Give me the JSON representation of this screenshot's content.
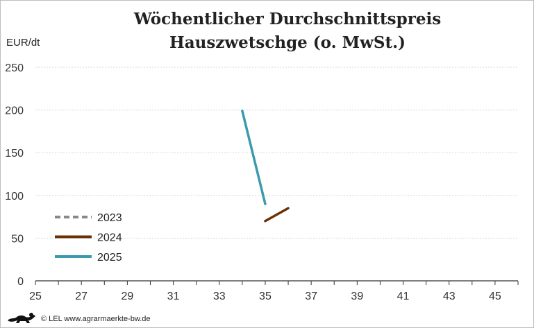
{
  "title_line1": "Wöchentlicher Durchschnittspreis",
  "title_line2": "Hauszwetschge (o. MwSt.)",
  "footer": "© LEL www.agrarmaerkte-bw.de",
  "chart_data": {
    "type": "line",
    "title": "Wöchentlicher Durchschnittspreis Hauszwetschge (o. MwSt.)",
    "ylabel": "EUR/dt",
    "xlim": [
      25,
      46
    ],
    "ylim": [
      0,
      250
    ],
    "x_ticks": [
      25,
      27,
      29,
      31,
      33,
      35,
      37,
      39,
      41,
      43,
      45
    ],
    "y_ticks": [
      0,
      50,
      100,
      150,
      200,
      250
    ],
    "grid": "horizontal dotted",
    "legend_position": "lower-left",
    "series": [
      {
        "name": "2023",
        "color": "#888888",
        "dash": true,
        "points": []
      },
      {
        "name": "2024",
        "color": "#6b3006",
        "dash": false,
        "points": [
          [
            35,
            70
          ],
          [
            36,
            85
          ]
        ]
      },
      {
        "name": "2025",
        "color": "#3a9bad",
        "dash": false,
        "points": [
          [
            34,
            199
          ],
          [
            35,
            90
          ]
        ]
      }
    ]
  }
}
